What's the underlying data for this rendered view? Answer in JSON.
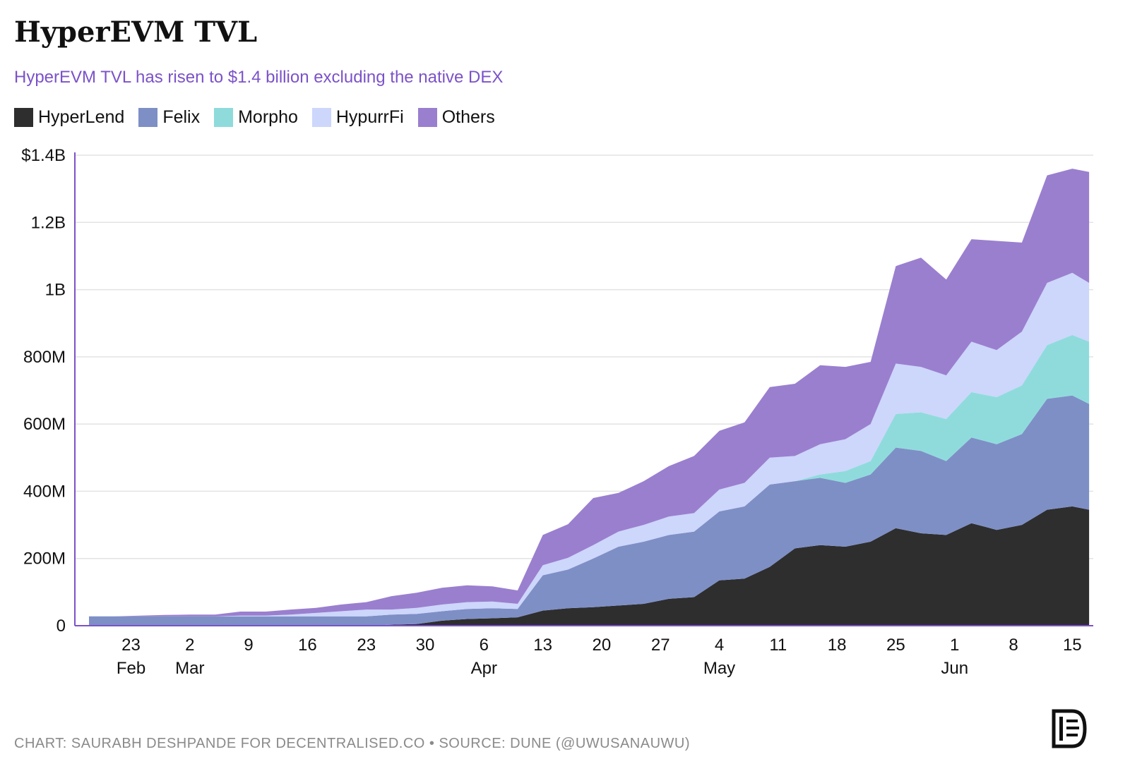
{
  "header": {
    "title": "HyperEVM TVL",
    "subtitle": "HyperEVM TVL has risen to $1.4 billion excluding the native DEX"
  },
  "footer": {
    "credit": "CHART: SAURABH DESHPANDE FOR DECENTRALISED.CO • SOURCE: DUNE (@UWUSANAUWU)"
  },
  "colors": {
    "HyperLend": "#2e2e2e",
    "Felix": "#7e8fc6",
    "Morpho": "#8fdbdc",
    "HypurrFi": "#cdd6fb",
    "Others": "#9a7fcf",
    "axis": "#7b52c9",
    "grid": "#e3e3e3"
  },
  "chart_data": {
    "type": "area",
    "stacked": true,
    "title": "HyperEVM TVL",
    "xlabel": "",
    "ylabel": "",
    "ylim": [
      0,
      1400
    ],
    "y_unit": "millions USD",
    "y_ticks": [
      {
        "value": 0,
        "label": "0"
      },
      {
        "value": 200,
        "label": "200M"
      },
      {
        "value": 400,
        "label": "400M"
      },
      {
        "value": 600,
        "label": "600M"
      },
      {
        "value": 800,
        "label": "800M"
      },
      {
        "value": 1000,
        "label": "1B"
      },
      {
        "value": 1200,
        "label": "1.2B"
      },
      {
        "value": 1400,
        "label": "$1.4B"
      }
    ],
    "x_start": "Feb 18",
    "x_end": "Jun 17",
    "x_ticks": [
      {
        "day": 5,
        "label": "23",
        "sub": "Feb"
      },
      {
        "day": 12,
        "label": "2",
        "sub": "Mar"
      },
      {
        "day": 19,
        "label": "9",
        "sub": ""
      },
      {
        "day": 26,
        "label": "16",
        "sub": ""
      },
      {
        "day": 33,
        "label": "23",
        "sub": ""
      },
      {
        "day": 40,
        "label": "30",
        "sub": ""
      },
      {
        "day": 47,
        "label": "6",
        "sub": "Apr"
      },
      {
        "day": 54,
        "label": "13",
        "sub": ""
      },
      {
        "day": 61,
        "label": "20",
        "sub": ""
      },
      {
        "day": 68,
        "label": "27",
        "sub": ""
      },
      {
        "day": 75,
        "label": "4",
        "sub": "May"
      },
      {
        "day": 82,
        "label": "11",
        "sub": ""
      },
      {
        "day": 89,
        "label": "18",
        "sub": ""
      },
      {
        "day": 96,
        "label": "25",
        "sub": ""
      },
      {
        "day": 103,
        "label": "1",
        "sub": "Jun"
      },
      {
        "day": 110,
        "label": "8",
        "sub": ""
      },
      {
        "day": 117,
        "label": "15",
        "sub": ""
      }
    ],
    "legend": [
      "HyperLend",
      "Felix",
      "Morpho",
      "HypurrFi",
      "Others"
    ],
    "series_note": "Values are in millions USD, sampled every ~3 days; stacked bottom to top.",
    "days": [
      0,
      3,
      6,
      9,
      12,
      15,
      18,
      21,
      24,
      27,
      30,
      33,
      36,
      39,
      42,
      45,
      48,
      51,
      54,
      57,
      60,
      63,
      66,
      69,
      72,
      75,
      78,
      81,
      84,
      87,
      90,
      93,
      96,
      99,
      102,
      105,
      108,
      111,
      114,
      117,
      119
    ],
    "series": [
      {
        "name": "HyperLend",
        "values": [
          0,
          0,
          0,
          0,
          0,
          0,
          0,
          0,
          0,
          0,
          0,
          0,
          3,
          5,
          15,
          20,
          22,
          25,
          45,
          52,
          55,
          60,
          65,
          80,
          85,
          135,
          140,
          175,
          230,
          240,
          235,
          250,
          290,
          275,
          270,
          305,
          285,
          300,
          345,
          355,
          345
        ]
      },
      {
        "name": "Felix",
        "values": [
          28,
          28,
          28,
          28,
          28,
          28,
          28,
          28,
          28,
          28,
          28,
          28,
          30,
          30,
          28,
          30,
          30,
          25,
          105,
          115,
          145,
          175,
          185,
          190,
          195,
          205,
          215,
          245,
          200,
          200,
          190,
          200,
          240,
          245,
          220,
          255,
          255,
          270,
          330,
          330,
          315
        ]
      },
      {
        "name": "Morpho",
        "values": [
          0,
          0,
          0,
          0,
          0,
          0,
          0,
          0,
          0,
          0,
          0,
          0,
          0,
          0,
          0,
          0,
          0,
          0,
          0,
          0,
          0,
          0,
          0,
          0,
          0,
          0,
          0,
          0,
          0,
          10,
          35,
          40,
          100,
          115,
          125,
          135,
          140,
          145,
          160,
          180,
          185
        ]
      },
      {
        "name": "HypurrFi",
        "values": [
          0,
          0,
          0,
          0,
          0,
          0,
          2,
          2,
          5,
          10,
          15,
          20,
          15,
          18,
          20,
          20,
          20,
          15,
          30,
          35,
          40,
          45,
          50,
          55,
          55,
          65,
          70,
          80,
          75,
          90,
          95,
          110,
          150,
          135,
          130,
          150,
          140,
          160,
          185,
          185,
          175
        ]
      },
      {
        "name": "Others",
        "values": [
          0,
          0,
          2,
          4,
          5,
          5,
          12,
          12,
          15,
          15,
          20,
          22,
          40,
          45,
          50,
          50,
          45,
          40,
          90,
          100,
          140,
          115,
          130,
          150,
          170,
          175,
          180,
          210,
          215,
          235,
          215,
          185,
          290,
          325,
          285,
          305,
          325,
          265,
          320,
          310,
          330
        ]
      }
    ]
  }
}
